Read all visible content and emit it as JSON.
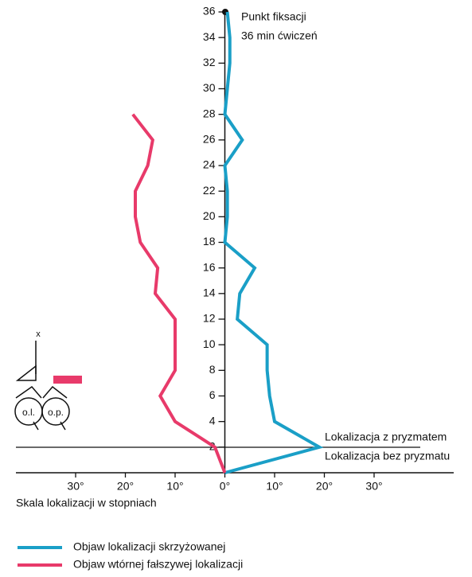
{
  "chart_data": {
    "type": "line",
    "xlabel": "Skala lokalizacji w stopniach",
    "xlim": [
      -42,
      46
    ],
    "xticks": [
      {
        "value": -30,
        "label": "30°"
      },
      {
        "value": -20,
        "label": "20°"
      },
      {
        "value": -10,
        "label": "10°"
      },
      {
        "value": 0,
        "label": "0°"
      },
      {
        "value": 10,
        "label": "10°"
      },
      {
        "value": 20,
        "label": "20°"
      },
      {
        "value": 30,
        "label": "30°"
      }
    ],
    "ylim": [
      0,
      36
    ],
    "yticks": [
      2,
      4,
      6,
      8,
      10,
      12,
      14,
      16,
      18,
      20,
      22,
      24,
      26,
      28,
      30,
      32,
      34,
      36
    ],
    "grid": false,
    "series": [
      {
        "name": "Objaw lokalizacji skrzyżowanej",
        "color": "#1a9fc7",
        "y": [
          0,
          2,
          4,
          6,
          8,
          10,
          12,
          14,
          16,
          18,
          20,
          22,
          24,
          26,
          28,
          30,
          32,
          34,
          36
        ],
        "values": [
          0,
          19,
          10,
          9,
          8.5,
          8.5,
          2.5,
          3,
          6,
          0,
          0.5,
          0.5,
          0,
          3.5,
          0,
          0.5,
          1,
          1,
          0.5
        ]
      },
      {
        "name": "Objaw wtórnej fałszywej lokalizacji",
        "color": "#e83a6a",
        "y": [
          0,
          2,
          4,
          6,
          8,
          10,
          12,
          14,
          16,
          18,
          20,
          22,
          24,
          26,
          28
        ],
        "values": [
          0,
          -2,
          -10,
          -13,
          -10,
          -10,
          -10,
          -14,
          -13.5,
          -17,
          -18,
          -18,
          -15.5,
          -14.5,
          -18.5
        ]
      }
    ],
    "annotations": [
      "Punkt fiksacji",
      "36 min ćwiczeń",
      "Lokalizacja z pryzmatem",
      "Lokalizacja bez pryzmatu",
      "x",
      "o.l.",
      "o.p."
    ]
  }
}
